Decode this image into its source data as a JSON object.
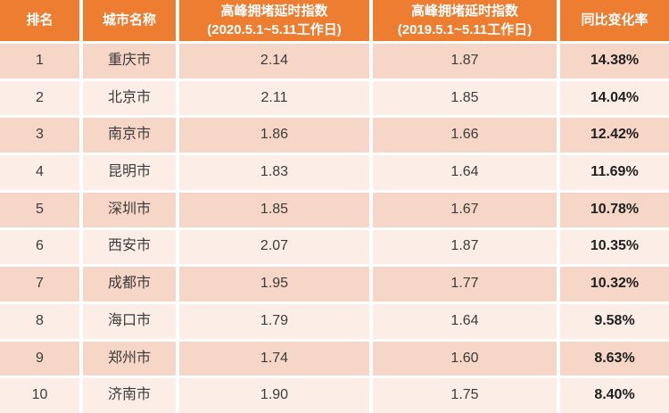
{
  "colors": {
    "header_bg": "#ED7D31",
    "header_text": "#FFFFFF",
    "row_odd_bg": "#F6D6C6",
    "row_even_bg": "#FCEEE7",
    "body_text": "#3B3B3B",
    "percent_text": "#1F1F1F"
  },
  "table": {
    "columns": [
      {
        "label": "排名"
      },
      {
        "label": "城市名称"
      },
      {
        "label": "高峰拥堵延时指数",
        "sublabel": "(2020.5.1~5.11工作日)"
      },
      {
        "label": "高峰拥堵延时指数",
        "sublabel": "(2019.5.1~5.11工作日)"
      },
      {
        "label": "同比变化率"
      }
    ],
    "rows": [
      {
        "rank": "1",
        "city": "重庆市",
        "index_2020": "2.14",
        "index_2019": "1.87",
        "yoy_change": "14.38%"
      },
      {
        "rank": "2",
        "city": "北京市",
        "index_2020": "2.11",
        "index_2019": "1.85",
        "yoy_change": "14.04%"
      },
      {
        "rank": "3",
        "city": "南京市",
        "index_2020": "1.86",
        "index_2019": "1.66",
        "yoy_change": "12.42%"
      },
      {
        "rank": "4",
        "city": "昆明市",
        "index_2020": "1.83",
        "index_2019": "1.64",
        "yoy_change": "11.69%"
      },
      {
        "rank": "5",
        "city": "深圳市",
        "index_2020": "1.85",
        "index_2019": "1.67",
        "yoy_change": "10.78%"
      },
      {
        "rank": "6",
        "city": "西安市",
        "index_2020": "2.07",
        "index_2019": "1.87",
        "yoy_change": "10.35%"
      },
      {
        "rank": "7",
        "city": "成都市",
        "index_2020": "1.95",
        "index_2019": "1.77",
        "yoy_change": "10.32%"
      },
      {
        "rank": "8",
        "city": "海口市",
        "index_2020": "1.79",
        "index_2019": "1.64",
        "yoy_change": "9.58%"
      },
      {
        "rank": "9",
        "city": "郑州市",
        "index_2020": "1.74",
        "index_2019": "1.60",
        "yoy_change": "8.63%"
      },
      {
        "rank": "10",
        "city": "济南市",
        "index_2020": "1.90",
        "index_2019": "1.75",
        "yoy_change": "8.40%"
      }
    ]
  }
}
